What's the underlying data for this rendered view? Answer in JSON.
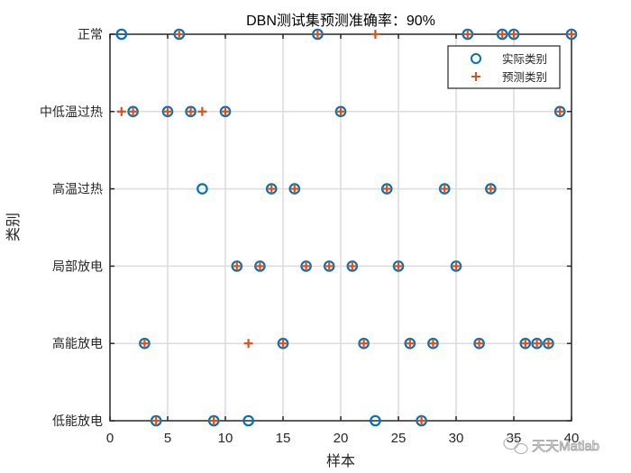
{
  "chart_data": {
    "type": "scatter",
    "title": "DBN测试集预测准确率：90%",
    "xlabel": "样本",
    "ylabel": "类别",
    "xlim": [
      0,
      40
    ],
    "xticks": [
      0,
      5,
      10,
      15,
      20,
      25,
      30,
      35,
      40
    ],
    "ytick_labels": [
      "低能放电",
      "高能放电",
      "局部放电",
      "高温过热",
      "中低温过热",
      "正常"
    ],
    "grid": true,
    "legend_position": "northeast",
    "legend": [
      "实际类别",
      "预测类别"
    ],
    "x": [
      1,
      2,
      3,
      4,
      5,
      6,
      7,
      8,
      9,
      10,
      11,
      12,
      13,
      14,
      15,
      16,
      17,
      18,
      19,
      20,
      21,
      22,
      23,
      24,
      25,
      26,
      27,
      28,
      29,
      30,
      31,
      32,
      33,
      34,
      35,
      36,
      37,
      38,
      39,
      40
    ],
    "series": [
      {
        "name": "实际类别",
        "marker": "o",
        "color": "#0072BD",
        "values": [
          "正常",
          "中低温过热",
          "高能放电",
          "低能放电",
          "中低温过热",
          "正常",
          "中低温过热",
          "高温过热",
          "低能放电",
          "中低温过热",
          "局部放电",
          "低能放电",
          "局部放电",
          "高温过热",
          "高能放电",
          "高温过热",
          "局部放电",
          "正常",
          "局部放电",
          "中低温过热",
          "局部放电",
          "高能放电",
          "低能放电",
          "高温过热",
          "局部放电",
          "高能放电",
          "低能放电",
          "高能放电",
          "高温过热",
          "局部放电",
          "正常",
          "高能放电",
          "高温过热",
          "正常",
          "正常",
          "高能放电",
          "高能放电",
          "高能放电",
          "中低温过热",
          "正常"
        ]
      },
      {
        "name": "预测类别",
        "marker": "+",
        "color": "#D95319",
        "values": [
          "中低温过热",
          "中低温过热",
          "高能放电",
          "低能放电",
          "中低温过热",
          "正常",
          "中低温过热",
          "中低温过热",
          "低能放电",
          "中低温过热",
          "局部放电",
          "高能放电",
          "局部放电",
          "高温过热",
          "高能放电",
          "高温过热",
          "局部放电",
          "正常",
          "局部放电",
          "中低温过热",
          "局部放电",
          "高能放电",
          "正常",
          "高温过热",
          "局部放电",
          "高能放电",
          "低能放电",
          "高能放电",
          "高温过热",
          "局部放电",
          "正常",
          "高能放电",
          "高温过热",
          "正常",
          "正常",
          "高能放电",
          "高能放电",
          "高能放电",
          "中低温过热",
          "正常"
        ]
      }
    ],
    "accuracy_percent": 90
  },
  "watermark": "天天Matlab",
  "colors": {
    "actual": "#0072BD",
    "predicted": "#D95319",
    "axis": "#262626",
    "grid": "#DCDCDC"
  }
}
